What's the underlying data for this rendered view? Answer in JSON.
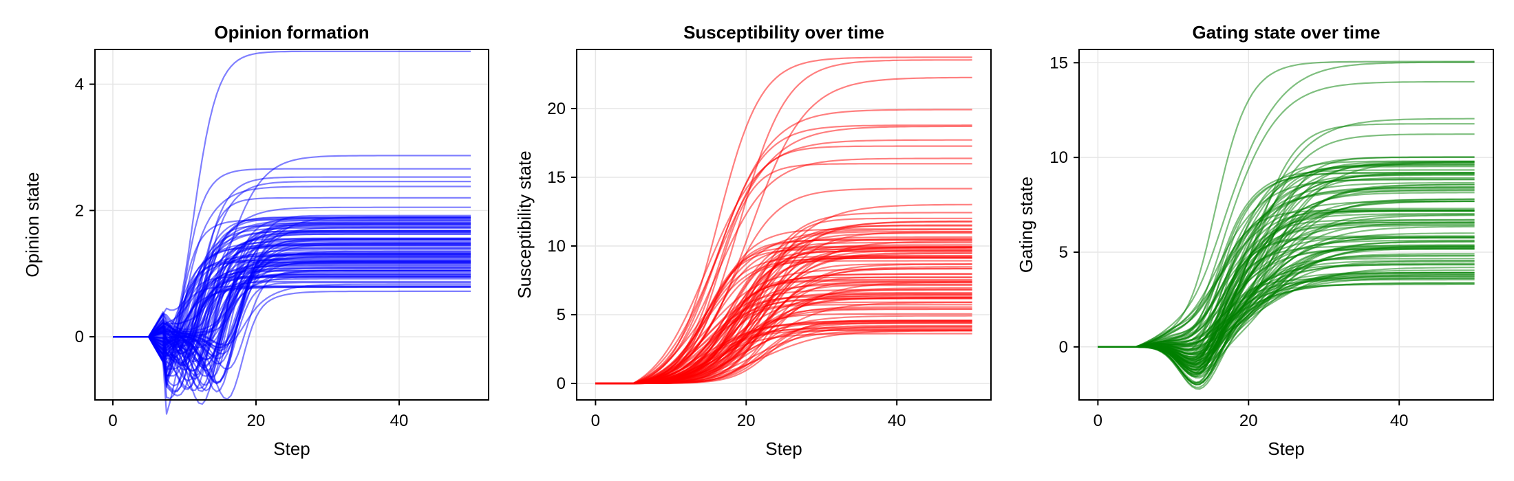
{
  "chart_data": [
    {
      "type": "line",
      "title": "Opinion formation",
      "xlabel": "Step",
      "ylabel": "Opinion state",
      "color": "#0000ff",
      "xlim": [
        -2.5,
        52.5
      ],
      "ylim": [
        -1.0,
        4.55
      ],
      "xticks": [
        0,
        20,
        40
      ],
      "yticks": [
        0,
        2,
        4
      ],
      "grid": true,
      "model": "opinion",
      "n_series": 100,
      "steps": [
        0,
        50
      ],
      "seed": 11,
      "final_values": [
        4.52,
        2.87,
        2.66,
        2.53,
        2.46,
        2.38,
        2.2,
        2.05,
        1.92,
        1.85,
        1.8,
        1.74,
        1.65,
        1.55,
        1.45,
        1.38,
        1.28,
        1.2,
        1.12,
        1.05,
        0.98,
        0.92,
        0.86,
        0.8,
        0.72
      ]
    },
    {
      "type": "line",
      "title": "Susceptibility over time",
      "xlabel": "Step",
      "ylabel": "Susceptibility state",
      "color": "#ff0000",
      "xlim": [
        -2.5,
        52.5
      ],
      "ylim": [
        -1.2,
        24.3
      ],
      "xticks": [
        0,
        20,
        40
      ],
      "yticks": [
        0,
        5,
        10,
        15,
        20
      ],
      "grid": true,
      "model": "sigmoid",
      "n_series": 100,
      "steps": [
        0,
        50
      ],
      "seed": 23,
      "final_values": [
        24.2,
        23.8,
        22.6,
        20.7,
        19.8,
        19.3,
        18.9,
        17.5,
        17.0,
        16.1,
        14.4,
        13.2,
        12.5,
        11.5,
        10.8,
        10.0,
        9.2,
        8.5,
        7.6,
        7.0,
        6.2,
        5.5,
        4.6,
        4.2,
        3.8
      ]
    },
    {
      "type": "line",
      "title": "Gating state over time",
      "xlabel": "Step",
      "ylabel": "Gating state",
      "color": "#008000",
      "xlim": [
        -2.5,
        52.5
      ],
      "ylim": [
        -2.8,
        15.7
      ],
      "xticks": [
        0,
        20,
        40
      ],
      "yticks": [
        0,
        5,
        10,
        15
      ],
      "grid": true,
      "model": "gating",
      "n_series": 100,
      "steps": [
        0,
        50
      ],
      "seed": 37,
      "final_values": [
        15.6,
        15.3,
        14.4,
        12.2,
        11.8,
        11.3,
        10.2,
        9.9,
        9.4,
        8.6,
        8.2,
        7.8,
        7.4,
        7.0,
        6.6,
        6.2,
        5.8,
        5.4,
        5.0,
        4.4,
        3.7,
        3.4
      ]
    }
  ]
}
